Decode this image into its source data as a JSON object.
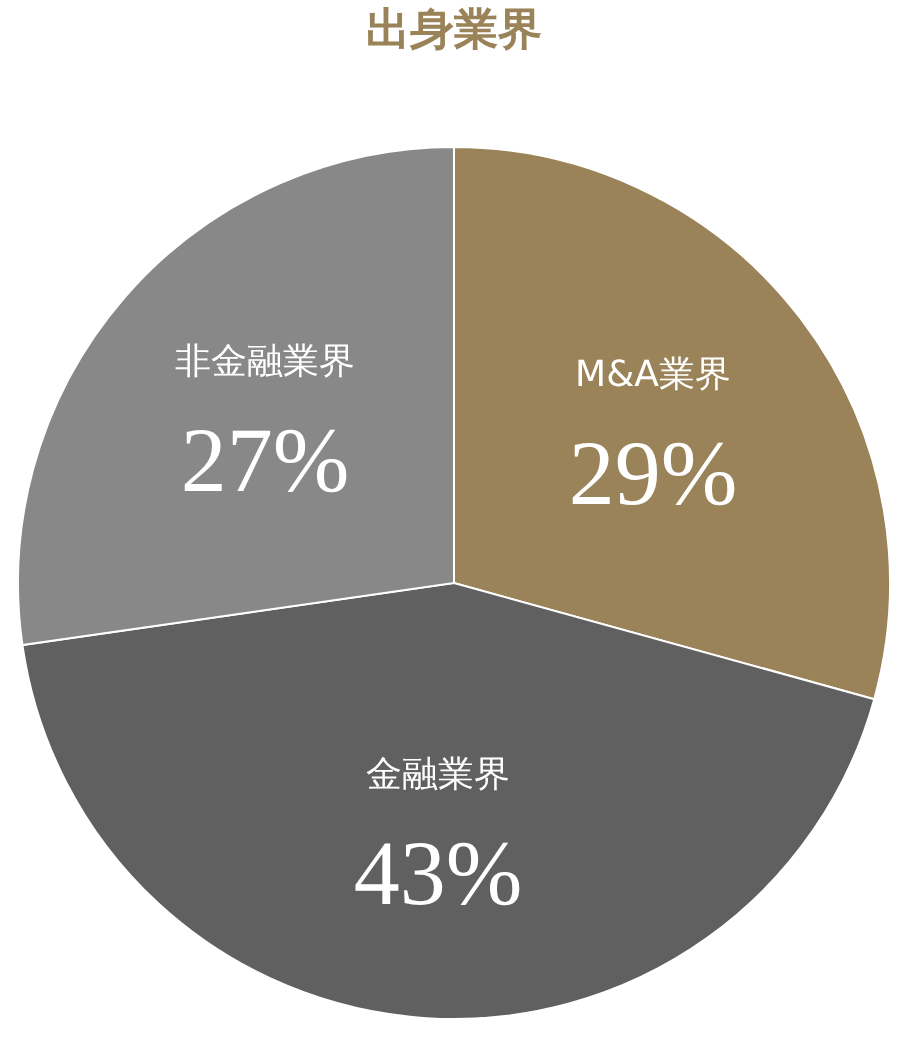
{
  "chart_data": {
    "type": "pie",
    "title": "出身業界",
    "categories": [
      "M&A業界",
      "金融業界",
      "非金融業界"
    ],
    "values": [
      29,
      43,
      27
    ],
    "colors": [
      "#9a8358",
      "#606060",
      "#888888"
    ],
    "value_labels": [
      "29%",
      "43%",
      "27%"
    ],
    "legend": false
  }
}
